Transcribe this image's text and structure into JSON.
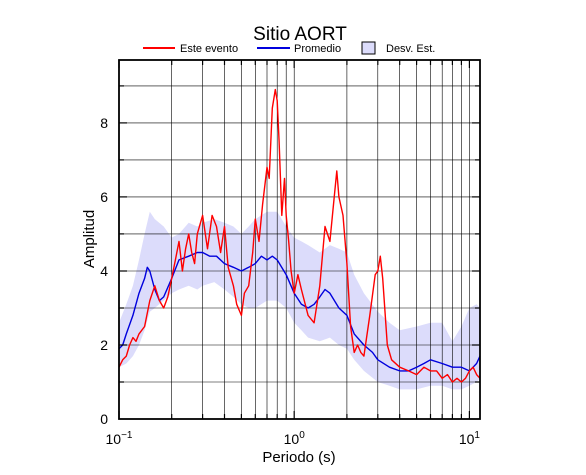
{
  "chart_data": {
    "type": "line",
    "title": "Sitio AORT",
    "xlabel": "Periodo (s)",
    "ylabel": "Amplitud",
    "x_scale": "log",
    "xlim": [
      0.1,
      11.5
    ],
    "ylim": [
      0,
      9.7
    ],
    "x_ticks": [
      {
        "value": 0.1,
        "base": "10",
        "exp": "−1"
      },
      {
        "value": 1,
        "base": "10",
        "exp": "0"
      },
      {
        "value": 10,
        "base": "10",
        "exp": "1"
      }
    ],
    "y_ticks": [
      0,
      2,
      4,
      6,
      8
    ],
    "grid": true,
    "legend": {
      "placement": "top",
      "entries": [
        {
          "label": "Este evento",
          "color": "#ff0000",
          "kind": "line"
        },
        {
          "label": "Promedio",
          "color": "#0000dd",
          "kind": "line"
        },
        {
          "label": "Desv. Est.",
          "color": "#dcdcfb",
          "kind": "box"
        }
      ]
    },
    "band": {
      "name": "Desv. Est.",
      "color": "#dcdcfb",
      "x": [
        0.1,
        0.11,
        0.12,
        0.13,
        0.14,
        0.15,
        0.16,
        0.18,
        0.2,
        0.22,
        0.25,
        0.28,
        0.3,
        0.35,
        0.4,
        0.45,
        0.5,
        0.55,
        0.6,
        0.7,
        0.8,
        0.9,
        1.0,
        1.1,
        1.2,
        1.4,
        1.6,
        1.8,
        2.0,
        2.2,
        2.5,
        3.0,
        3.5,
        4.0,
        5.0,
        6.0,
        7.0,
        8.0,
        9.0,
        10.0,
        11.0,
        11.5
      ],
      "upper": [
        2.6,
        3.1,
        3.6,
        4.3,
        5.0,
        5.6,
        5.4,
        5.2,
        4.9,
        5.0,
        5.3,
        5.2,
        5.3,
        5.4,
        5.3,
        5.2,
        5.0,
        5.2,
        5.4,
        5.6,
        5.6,
        5.2,
        4.9,
        4.8,
        4.7,
        4.5,
        4.7,
        4.6,
        4.5,
        3.9,
        3.4,
        2.9,
        2.6,
        2.4,
        2.5,
        2.6,
        2.6,
        2.1,
        2.5,
        3.0,
        3.1,
        3.0
      ],
      "lower": [
        1.4,
        1.5,
        1.7,
        2.0,
        2.4,
        2.9,
        3.0,
        3.2,
        3.4,
        3.5,
        3.6,
        3.5,
        3.6,
        3.7,
        3.5,
        3.3,
        3.1,
        3.0,
        3.0,
        3.2,
        3.2,
        3.0,
        2.6,
        2.4,
        2.2,
        2.1,
        2.2,
        2.0,
        1.9,
        1.6,
        1.3,
        1.0,
        0.9,
        0.8,
        0.8,
        0.9,
        0.9,
        0.8,
        0.8,
        0.9,
        1.0,
        1.1
      ]
    },
    "series": [
      {
        "name": "Promedio",
        "color": "#0000dd",
        "x": [
          0.1,
          0.105,
          0.11,
          0.12,
          0.13,
          0.14,
          0.145,
          0.15,
          0.16,
          0.17,
          0.18,
          0.2,
          0.22,
          0.25,
          0.28,
          0.3,
          0.33,
          0.36,
          0.4,
          0.45,
          0.5,
          0.55,
          0.6,
          0.65,
          0.7,
          0.75,
          0.8,
          0.9,
          1.0,
          1.1,
          1.2,
          1.3,
          1.4,
          1.5,
          1.6,
          1.8,
          2.0,
          2.2,
          2.5,
          2.8,
          3.0,
          3.5,
          4.0,
          4.5,
          5.0,
          5.5,
          6.0,
          7.0,
          8.0,
          9.0,
          10.0,
          10.5,
          11.0,
          11.5
        ],
        "y": [
          1.9,
          2.0,
          2.3,
          2.8,
          3.4,
          3.8,
          4.1,
          4.0,
          3.5,
          3.2,
          3.3,
          3.8,
          4.3,
          4.4,
          4.5,
          4.5,
          4.4,
          4.4,
          4.2,
          4.1,
          4.0,
          4.1,
          4.2,
          4.4,
          4.3,
          4.4,
          4.3,
          3.9,
          3.4,
          3.1,
          3.0,
          3.1,
          3.3,
          3.5,
          3.4,
          3.0,
          2.8,
          2.3,
          2.0,
          1.8,
          1.6,
          1.4,
          1.3,
          1.3,
          1.4,
          1.5,
          1.6,
          1.5,
          1.4,
          1.4,
          1.3,
          1.4,
          1.5,
          1.7
        ]
      },
      {
        "name": "Este evento",
        "color": "#ff0000",
        "x": [
          0.1,
          0.105,
          0.11,
          0.115,
          0.12,
          0.125,
          0.13,
          0.14,
          0.15,
          0.16,
          0.17,
          0.18,
          0.19,
          0.2,
          0.21,
          0.22,
          0.23,
          0.24,
          0.25,
          0.26,
          0.27,
          0.28,
          0.3,
          0.32,
          0.34,
          0.36,
          0.38,
          0.4,
          0.42,
          0.45,
          0.47,
          0.5,
          0.52,
          0.55,
          0.58,
          0.6,
          0.63,
          0.66,
          0.7,
          0.72,
          0.75,
          0.78,
          0.8,
          0.82,
          0.85,
          0.88,
          0.9,
          0.93,
          0.96,
          1.0,
          1.05,
          1.1,
          1.2,
          1.3,
          1.4,
          1.5,
          1.6,
          1.7,
          1.75,
          1.8,
          1.9,
          2.0,
          2.1,
          2.2,
          2.3,
          2.4,
          2.5,
          2.7,
          2.9,
          3.0,
          3.1,
          3.2,
          3.4,
          3.6,
          4.0,
          4.5,
          5.0,
          5.5,
          6.0,
          6.5,
          7.0,
          7.5,
          8.0,
          8.5,
          9.0,
          9.5,
          10.0,
          10.5,
          11.0,
          11.5
        ],
        "y": [
          1.4,
          1.6,
          1.7,
          2.0,
          2.2,
          2.1,
          2.3,
          2.5,
          3.2,
          3.6,
          3.2,
          3.0,
          3.3,
          3.8,
          4.3,
          4.8,
          4.0,
          4.6,
          5.0,
          4.5,
          4.2,
          5.0,
          5.5,
          4.6,
          5.5,
          5.2,
          4.5,
          5.2,
          4.1,
          3.6,
          3.1,
          2.8,
          3.4,
          3.6,
          4.5,
          5.4,
          4.8,
          5.8,
          6.8,
          6.5,
          8.4,
          8.9,
          8.6,
          7.5,
          5.5,
          6.5,
          5.5,
          4.8,
          4.0,
          3.4,
          3.9,
          3.5,
          2.8,
          2.6,
          3.6,
          5.2,
          4.8,
          6.1,
          6.7,
          6.0,
          5.5,
          4.2,
          2.5,
          1.8,
          2.0,
          1.8,
          1.7,
          2.8,
          3.9,
          4.0,
          4.4,
          3.8,
          2.0,
          1.6,
          1.4,
          1.3,
          1.2,
          1.4,
          1.3,
          1.3,
          1.1,
          1.2,
          1.0,
          1.1,
          1.0,
          1.1,
          1.3,
          1.4,
          1.2,
          1.1
        ]
      }
    ]
  }
}
